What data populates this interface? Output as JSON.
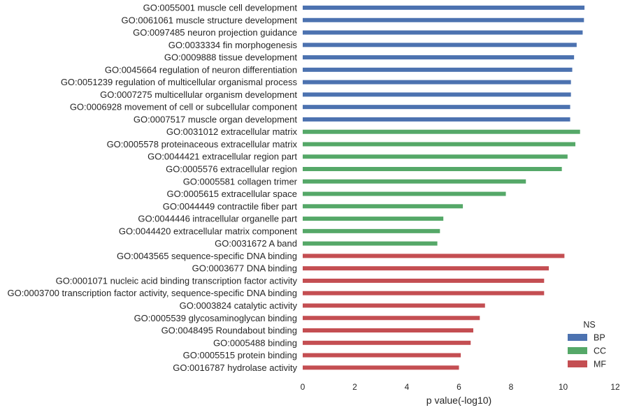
{
  "chart_data": {
    "type": "bar",
    "orientation": "horizontal",
    "xlabel": "p value(-log10)",
    "ylabel": "",
    "xlim": [
      0,
      12
    ],
    "xticks": [
      0,
      2,
      4,
      6,
      8,
      10,
      12
    ],
    "grid": false,
    "legend": {
      "title": "NS",
      "placement": "bottom-right",
      "entries": [
        {
          "name": "BP",
          "color": "#4c72b0"
        },
        {
          "name": "CC",
          "color": "#55a868"
        },
        {
          "name": "MF",
          "color": "#c44e52"
        }
      ]
    },
    "categories": [
      {
        "label": "GO:0055001 muscle cell development",
        "value": 10.82,
        "group": "BP"
      },
      {
        "label": "GO:0061061 muscle structure development",
        "value": 10.8,
        "group": "BP"
      },
      {
        "label": "GO:0097485 neuron projection guidance",
        "value": 10.75,
        "group": "BP"
      },
      {
        "label": "GO:0033334 fin morphogenesis",
        "value": 10.52,
        "group": "BP"
      },
      {
        "label": "GO:0009888 tissue development",
        "value": 10.42,
        "group": "BP"
      },
      {
        "label": "GO:0045664 regulation of neuron differentiation",
        "value": 10.35,
        "group": "BP"
      },
      {
        "label": "GO:0051239 regulation of multicellular organismal process",
        "value": 10.3,
        "group": "BP"
      },
      {
        "label": "GO:0007275 multicellular organism development",
        "value": 10.3,
        "group": "BP"
      },
      {
        "label": "GO:0006928 movement of cell or subcellular component",
        "value": 10.27,
        "group": "BP"
      },
      {
        "label": "GO:0007517 muscle organ development",
        "value": 10.27,
        "group": "BP"
      },
      {
        "label": "GO:0031012 extracellular matrix",
        "value": 10.65,
        "group": "CC"
      },
      {
        "label": "GO:0005578 proteinaceous extracellular matrix",
        "value": 10.47,
        "group": "CC"
      },
      {
        "label": "GO:0044421 extracellular region part",
        "value": 10.17,
        "group": "CC"
      },
      {
        "label": "GO:0005576 extracellular region",
        "value": 9.95,
        "group": "CC"
      },
      {
        "label": "GO:0005581 collagen trimer",
        "value": 8.57,
        "group": "CC"
      },
      {
        "label": "GO:0005615 extracellular space",
        "value": 7.8,
        "group": "CC"
      },
      {
        "label": "GO:0044449 contractile fiber part",
        "value": 6.15,
        "group": "CC"
      },
      {
        "label": "GO:0044446 intracellular organelle part",
        "value": 5.4,
        "group": "CC"
      },
      {
        "label": "GO:0044420 extracellular matrix component",
        "value": 5.27,
        "group": "CC"
      },
      {
        "label": "GO:0031672 A band",
        "value": 5.17,
        "group": "CC"
      },
      {
        "label": "GO:0043565 sequence-specific DNA binding",
        "value": 10.05,
        "group": "MF"
      },
      {
        "label": "GO:0003677 DNA binding",
        "value": 9.45,
        "group": "MF"
      },
      {
        "label": "GO:0001071 nucleic acid binding transcription factor activity",
        "value": 9.27,
        "group": "MF"
      },
      {
        "label": "GO:0003700 transcription factor activity, sequence-specific DNA binding",
        "value": 9.27,
        "group": "MF"
      },
      {
        "label": "GO:0003824 catalytic activity",
        "value": 7.0,
        "group": "MF"
      },
      {
        "label": "GO:0005539 glycosaminoglycan binding",
        "value": 6.8,
        "group": "MF"
      },
      {
        "label": "GO:0048495 Roundabout binding",
        "value": 6.55,
        "group": "MF"
      },
      {
        "label": "GO:0005488 binding",
        "value": 6.45,
        "group": "MF"
      },
      {
        "label": "GO:0005515 protein binding",
        "value": 6.07,
        "group": "MF"
      },
      {
        "label": "GO:0016787 hydrolase activity",
        "value": 6.0,
        "group": "MF"
      }
    ]
  }
}
